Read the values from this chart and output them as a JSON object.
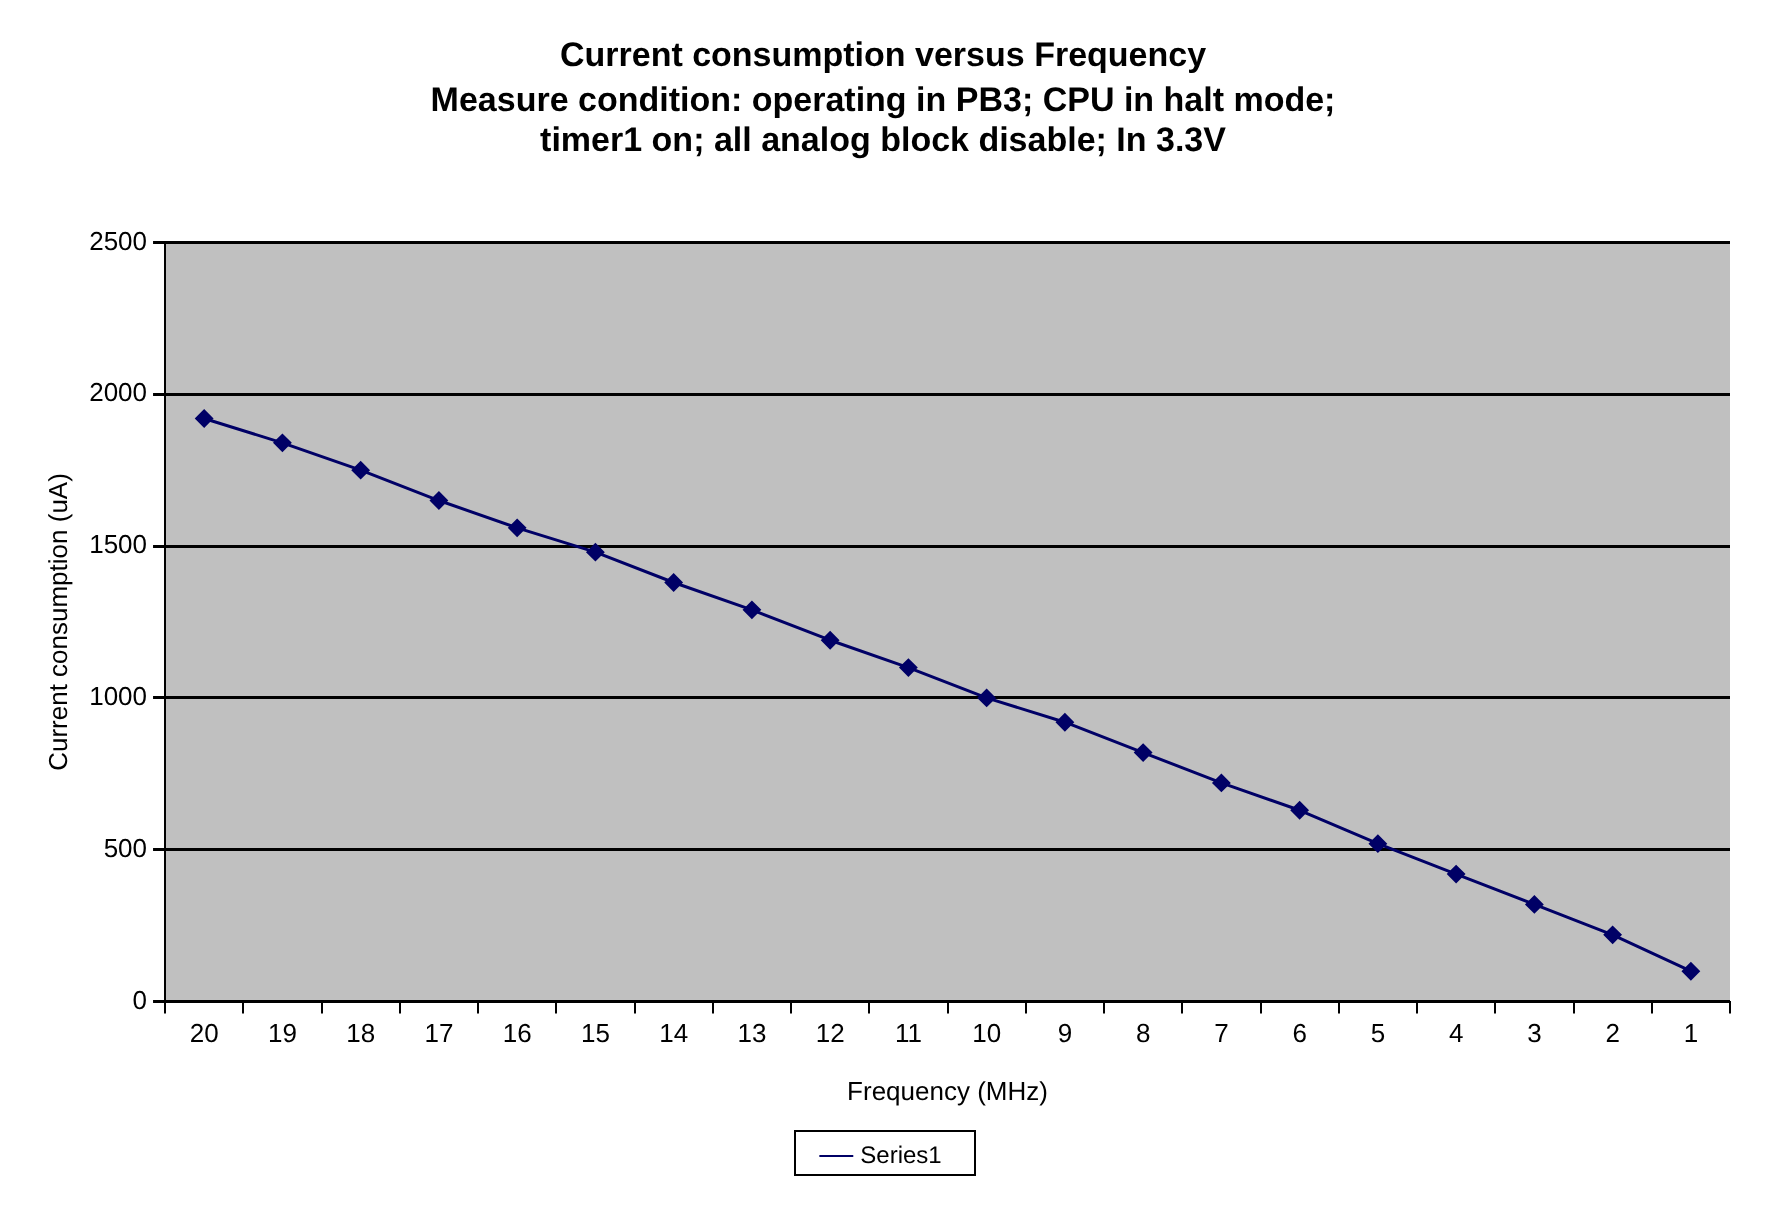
{
  "chart_data": {
    "type": "line",
    "title": "Current consumption versus Frequency",
    "subtitle": "Measure condition: operating in PB3; CPU in halt mode; timer1 on; all analog block disable; In 3.3V",
    "xlabel": "Frequency (MHz)",
    "ylabel": "Current consumption (uA)",
    "categories": [
      "20",
      "19",
      "18",
      "17",
      "16",
      "15",
      "14",
      "13",
      "12",
      "11",
      "10",
      "9",
      "8",
      "7",
      "6",
      "5",
      "4",
      "3",
      "2",
      "1"
    ],
    "series": [
      {
        "name": "Series1",
        "color": "#000066",
        "values": [
          1920,
          1840,
          1750,
          1650,
          1560,
          1480,
          1380,
          1290,
          1190,
          1100,
          1000,
          920,
          820,
          720,
          630,
          520,
          420,
          320,
          220,
          100
        ]
      }
    ],
    "ylim": [
      0,
      2500
    ],
    "yticks": [
      0,
      500,
      1000,
      1500,
      2000,
      2500
    ],
    "grid": "y",
    "legend": "bottom",
    "marker": "diamond",
    "line_style": "solid"
  }
}
